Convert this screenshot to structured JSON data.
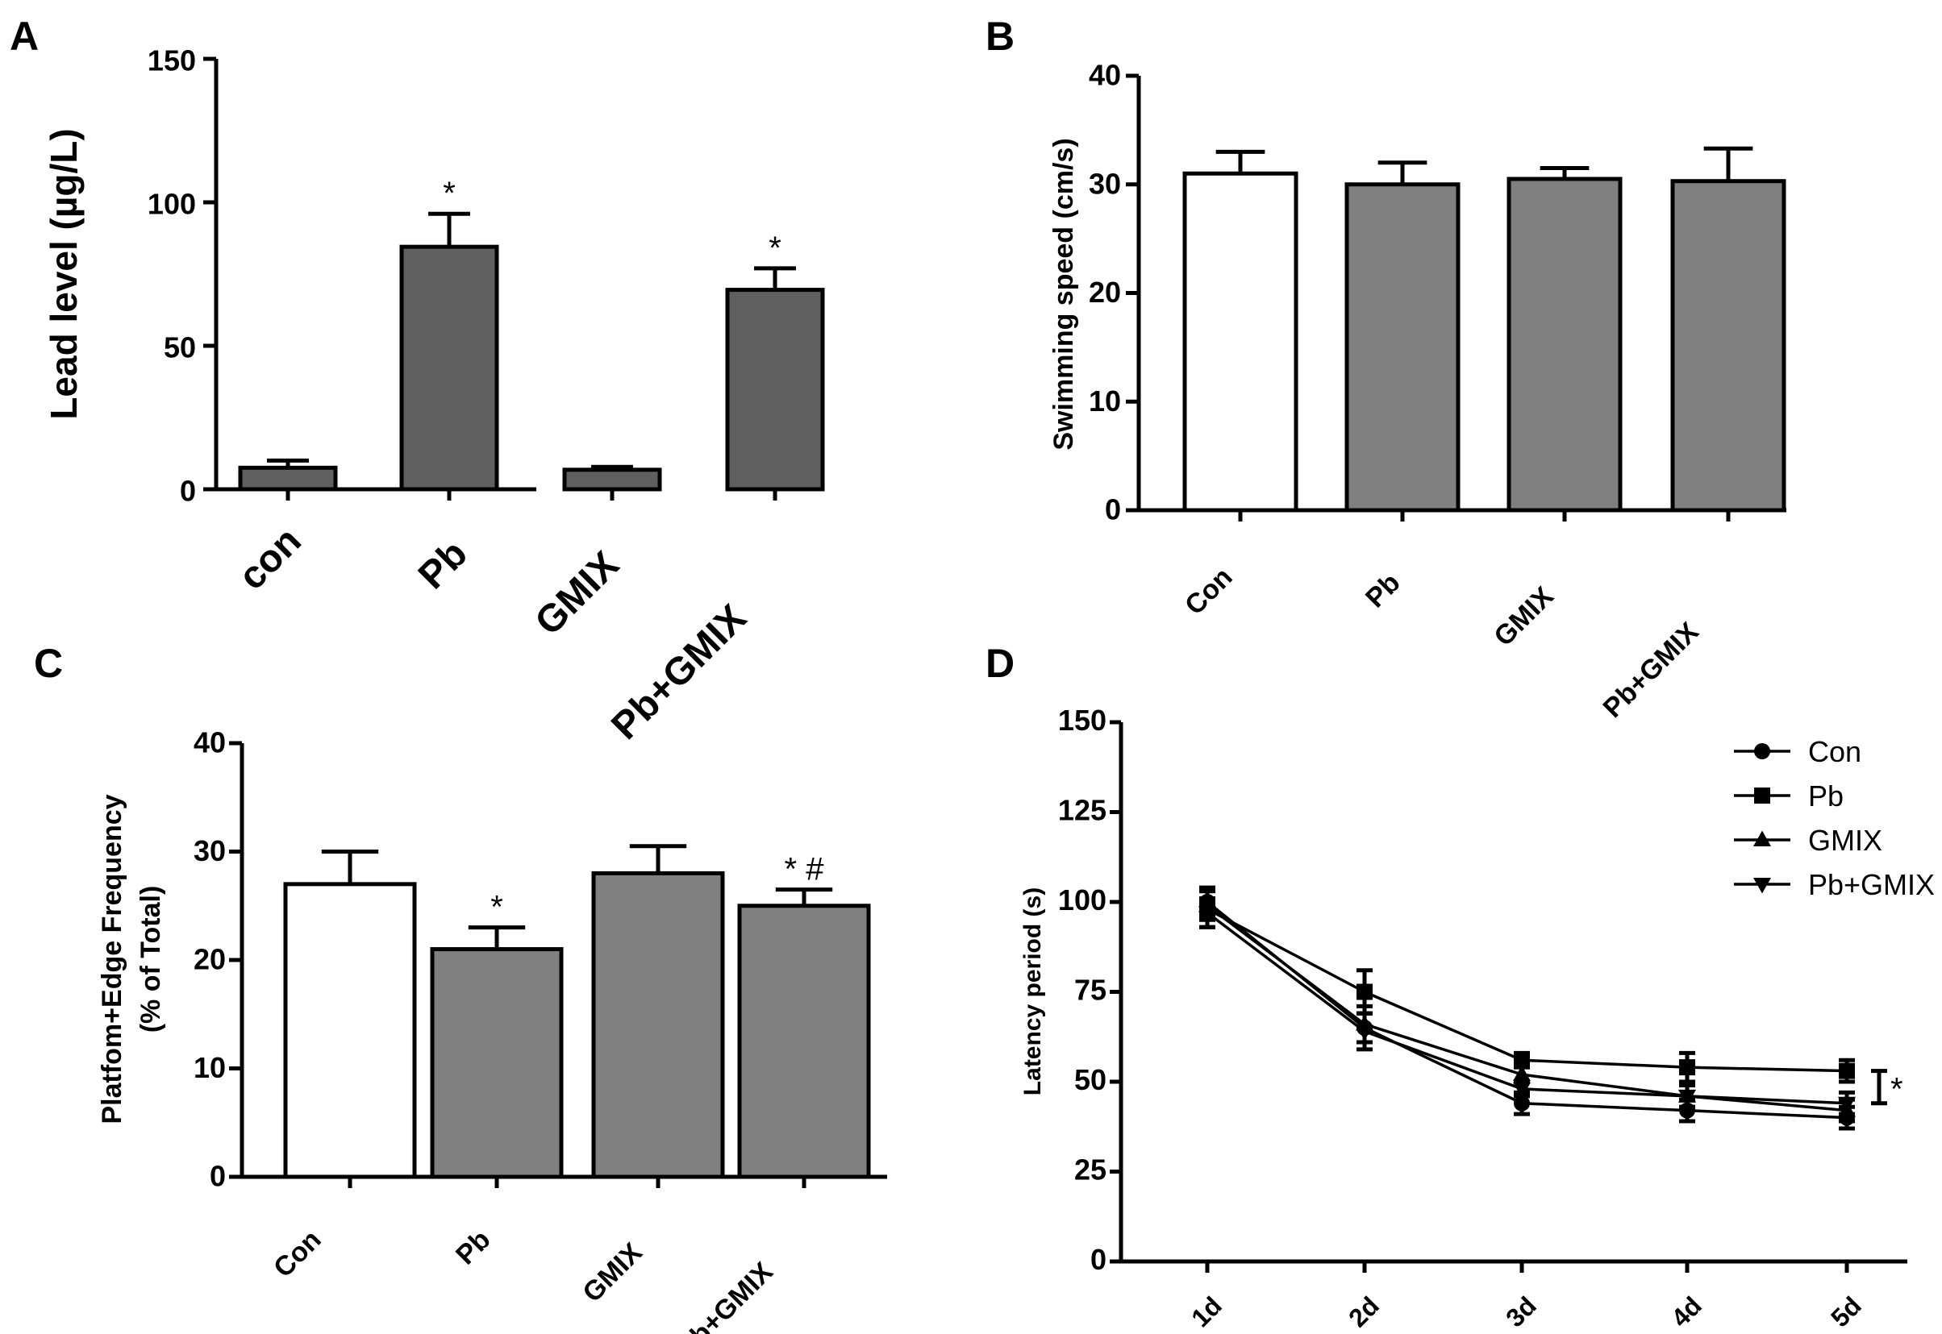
{
  "chart_data": [
    {
      "panel": "A",
      "type": "bar",
      "ylabel": "Lead level (µg/L)",
      "ylim": [
        0,
        150
      ],
      "yticks": [
        0,
        50,
        100,
        150
      ],
      "categories": [
        "con",
        "Pb",
        "GMIX",
        "Pb+GMIX"
      ],
      "values": [
        7.5,
        84.5,
        6.8,
        69.5
      ],
      "errors": [
        2.5,
        11.5,
        1.0,
        7.5
      ],
      "annotations": [
        "",
        "*",
        "",
        "*"
      ],
      "bar_colors": [
        "#5f5f5f",
        "#5f5f5f",
        "#5f5f5f",
        "#5f5f5f"
      ]
    },
    {
      "panel": "B",
      "type": "bar",
      "ylabel": "Swimming speed (cm/s)",
      "ylim": [
        0,
        40
      ],
      "yticks": [
        0,
        10,
        20,
        30,
        40
      ],
      "categories": [
        "Con",
        "Pb",
        "GMIX",
        "Pb+GMIX"
      ],
      "values": [
        31,
        30,
        30.5,
        30.3
      ],
      "errors": [
        2.0,
        2.0,
        1.0,
        3.0
      ],
      "annotations": [
        "",
        "",
        "",
        ""
      ],
      "bar_colors": [
        "#ffffff",
        "#808080",
        "#808080",
        "#808080"
      ]
    },
    {
      "panel": "C",
      "type": "bar",
      "ylabel": "Platfom+Edge Frequency",
      "ylabel2": "(% of Total)",
      "ylim": [
        0,
        40
      ],
      "yticks": [
        0,
        10,
        20,
        30,
        40
      ],
      "categories": [
        "Con",
        "Pb",
        "GMIX",
        "Pb+GMIX"
      ],
      "values": [
        27,
        21,
        28,
        25
      ],
      "errors": [
        3.0,
        2.0,
        2.5,
        1.5
      ],
      "annotations": [
        "",
        "*",
        "",
        "* #"
      ],
      "bar_colors": [
        "#ffffff",
        "#808080",
        "#808080",
        "#808080"
      ]
    },
    {
      "panel": "D",
      "type": "line",
      "ylabel": "Latency period (s)",
      "ylim": [
        0,
        150
      ],
      "yticks": [
        0,
        25,
        50,
        75,
        100,
        125,
        150
      ],
      "categories": [
        "1d",
        "2d",
        "3d",
        "4d",
        "5d"
      ],
      "series": [
        {
          "name": "Con",
          "marker": "circle",
          "values": [
            100,
            65,
            44,
            42,
            40
          ],
          "errors": [
            4,
            4,
            3,
            3,
            3
          ]
        },
        {
          "name": "Pb",
          "marker": "square",
          "values": [
            98,
            75,
            56,
            54,
            53
          ],
          "errors": [
            5,
            6,
            2,
            4,
            3
          ]
        },
        {
          "name": "GMIX",
          "marker": "triangle-up",
          "values": [
            99,
            66,
            52,
            46,
            42
          ],
          "errors": [
            4,
            5,
            2,
            3,
            3
          ]
        },
        {
          "name": "Pb+GMIX",
          "marker": "triangle-down",
          "values": [
            97,
            64,
            48,
            46,
            44
          ],
          "errors": [
            4,
            5,
            2,
            3,
            3
          ]
        }
      ],
      "bracket_annotation": "*"
    }
  ]
}
